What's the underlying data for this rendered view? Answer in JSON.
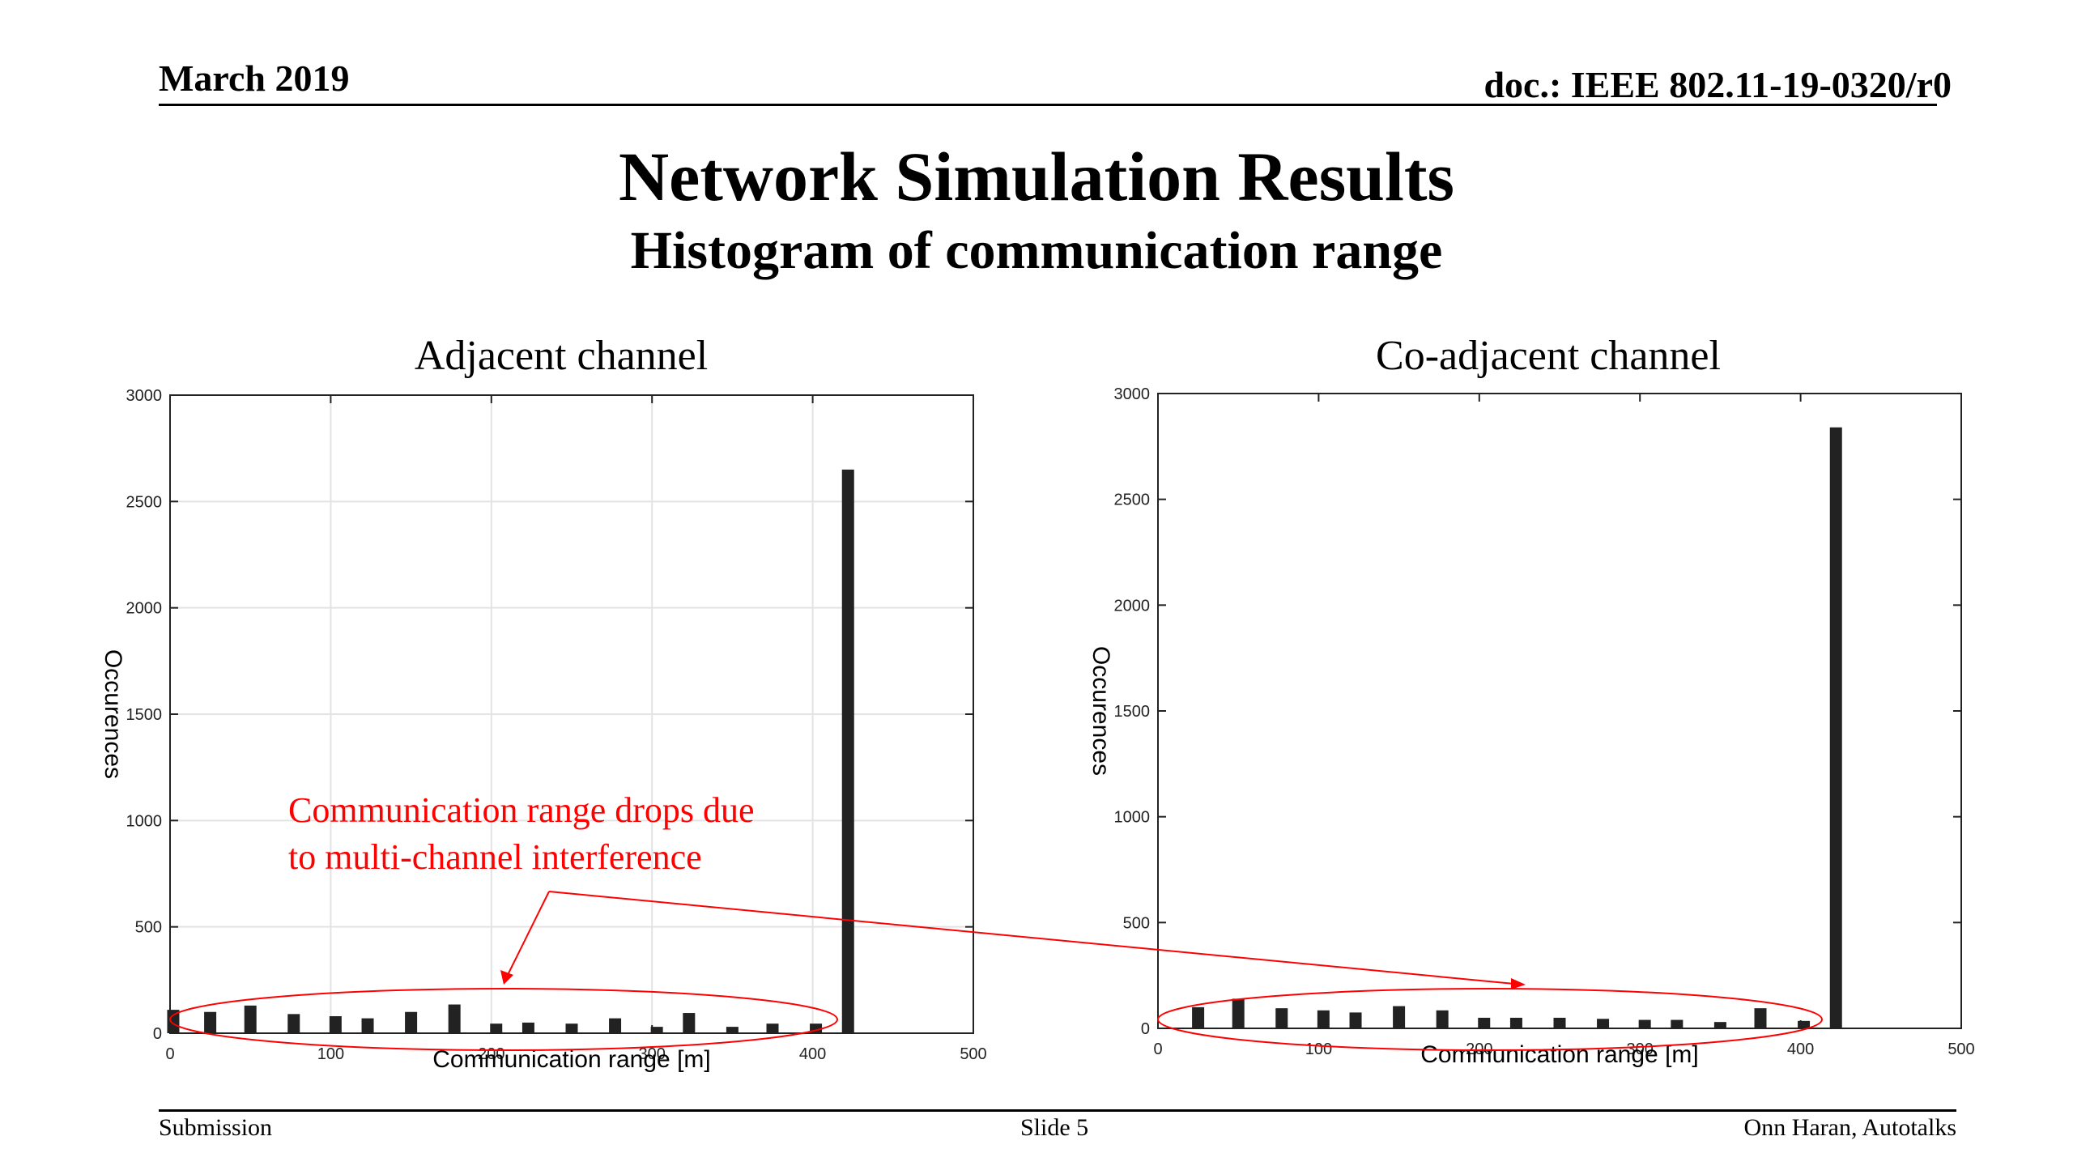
{
  "header": {
    "date": "March 2019",
    "doc": "doc.: IEEE 802.11-19-0320/r0"
  },
  "title": "Network Simulation Results",
  "subtitle": "Histogram of communication range",
  "callout": {
    "line1": "Communication range drops due",
    "line2": "to multi-channel interference",
    "color": "#ff0000"
  },
  "footer": {
    "left": "Submission",
    "center": "Slide 5",
    "right": "Onn Haran, Autotalks"
  },
  "chart_data": [
    {
      "type": "bar",
      "title": "Adjacent channel",
      "xlabel": "Communication range [m]",
      "ylabel": "Occurences",
      "xlim": [
        0,
        500
      ],
      "ylim": [
        0,
        3000
      ],
      "xticks": [
        0,
        100,
        200,
        300,
        400,
        500
      ],
      "yticks": [
        0,
        500,
        1000,
        1500,
        2000,
        2500,
        3000
      ],
      "grid": true,
      "bar_color": "#222222",
      "x": [
        2,
        25,
        50,
        77,
        103,
        123,
        150,
        177,
        203,
        223,
        250,
        277,
        303,
        323,
        350,
        375,
        402,
        422
      ],
      "values": [
        110,
        100,
        130,
        90,
        80,
        70,
        100,
        135,
        45,
        50,
        45,
        70,
        30,
        95,
        30,
        45,
        45,
        2650
      ]
    },
    {
      "type": "bar",
      "title": "Co-adjacent channel",
      "xlabel": "Communication range [m]",
      "ylabel": "Occurences",
      "xlim": [
        0,
        500
      ],
      "ylim": [
        0,
        3000
      ],
      "xticks": [
        0,
        100,
        200,
        300,
        400,
        500
      ],
      "yticks": [
        0,
        500,
        1000,
        1500,
        2000,
        2500,
        3000
      ],
      "grid": false,
      "bar_color": "#222222",
      "x": [
        25,
        50,
        77,
        103,
        123,
        150,
        177,
        203,
        223,
        250,
        277,
        303,
        323,
        350,
        375,
        402,
        422
      ],
      "values": [
        100,
        140,
        95,
        85,
        75,
        105,
        85,
        50,
        50,
        50,
        45,
        40,
        40,
        30,
        95,
        35,
        2840
      ]
    }
  ]
}
